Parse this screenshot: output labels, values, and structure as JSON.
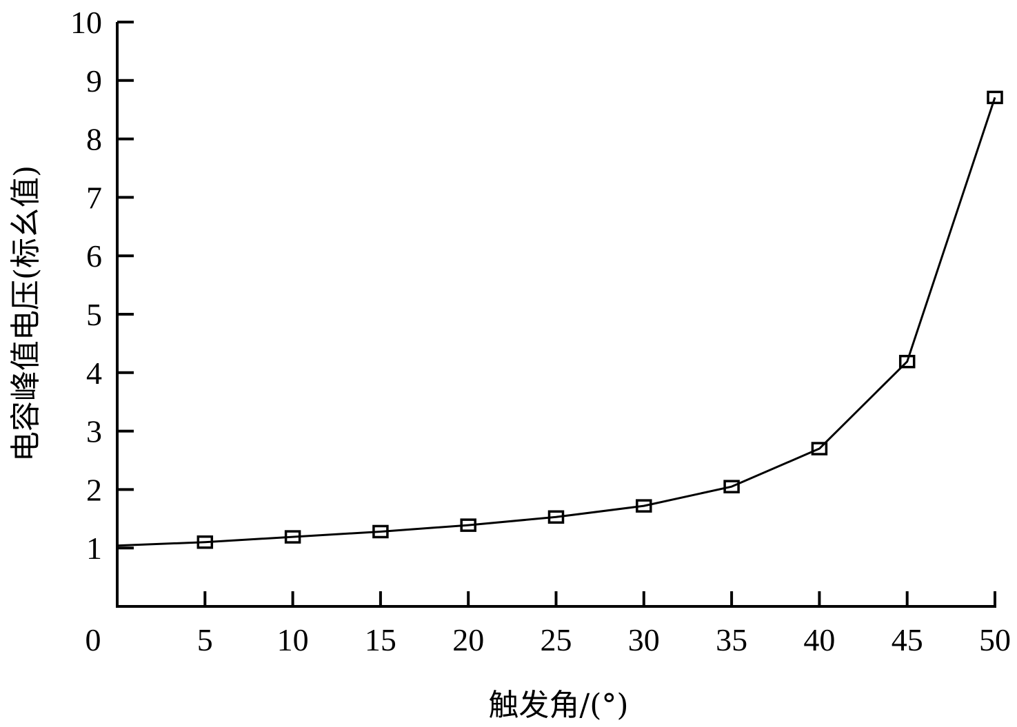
{
  "chart_data": {
    "type": "line",
    "title": "",
    "xlabel": "触发角/(°)",
    "ylabel": "电容峰值电压(标幺值)",
    "x": [
      0,
      5,
      10,
      15,
      20,
      25,
      30,
      35,
      40,
      45,
      50
    ],
    "series": [
      {
        "name": "电容峰值电压",
        "marker": "square-open",
        "color": "#000000",
        "values": [
          1.04,
          1.1,
          1.19,
          1.28,
          1.39,
          1.53,
          1.72,
          2.05,
          2.7,
          4.19,
          8.71
        ],
        "marker_shown": [
          false,
          true,
          true,
          true,
          true,
          true,
          true,
          true,
          true,
          true,
          true
        ]
      }
    ],
    "xlim": [
      0,
      50
    ],
    "ylim": [
      0,
      10
    ],
    "xticks": [
      0,
      5,
      10,
      15,
      20,
      25,
      30,
      35,
      40,
      45,
      50
    ],
    "yticks": [
      1,
      2,
      3,
      4,
      5,
      6,
      7,
      8,
      9,
      10
    ],
    "x_tick_labels": [
      "0",
      "5",
      "10",
      "15",
      "20",
      "25",
      "30",
      "35",
      "40",
      "45",
      "50"
    ],
    "y_tick_labels": [
      "1",
      "2",
      "3",
      "4",
      "5",
      "6",
      "7",
      "8",
      "9",
      "10"
    ],
    "grid": false,
    "legend": null
  }
}
